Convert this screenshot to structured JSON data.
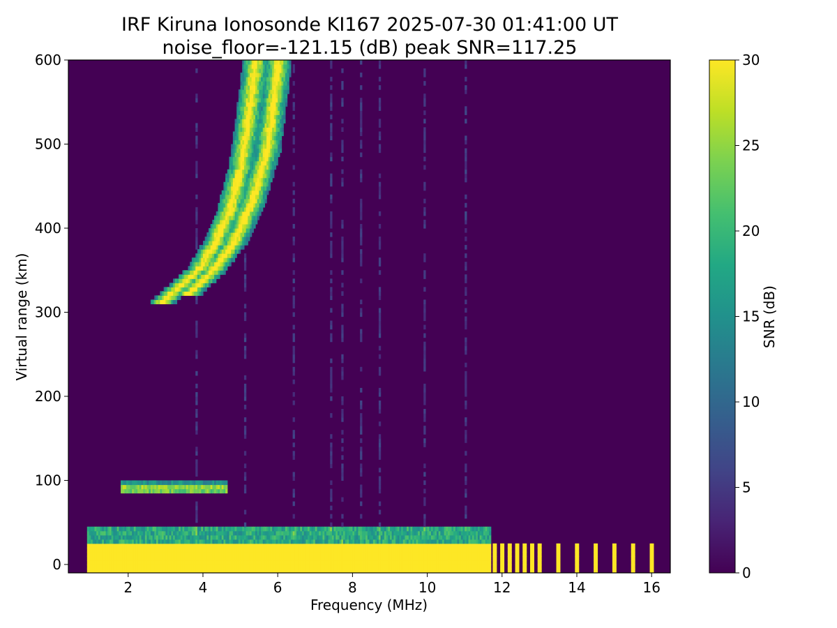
{
  "chart_data": {
    "type": "heatmap",
    "title_line1": "IRF Kiruna Ionosonde KI167 2025-07-30 01:41:00  UT",
    "title_line2": "noise_floor=-121.15 (dB) peak SNR=117.25",
    "xlabel": "Frequency (MHz)",
    "ylabel": "Virtual range (km)",
    "colorbar_label": "SNR (dB)",
    "xlim": [
      0.4,
      16.5
    ],
    "ylim": [
      -10,
      600
    ],
    "clim": [
      0,
      30
    ],
    "x_ticks": [
      2,
      4,
      6,
      8,
      10,
      12,
      14,
      16
    ],
    "y_ticks": [
      0,
      100,
      200,
      300,
      400,
      500,
      600
    ],
    "colorbar_ticks": [
      0,
      5,
      10,
      15,
      20,
      25,
      30
    ],
    "colormap": "viridis",
    "traces": [
      {
        "name_hint": "F-layer O-mode",
        "points": [
          [
            2.9,
            310
          ],
          [
            3.4,
            330
          ],
          [
            3.9,
            350
          ],
          [
            4.3,
            380
          ],
          [
            4.7,
            420
          ],
          [
            5.0,
            470
          ],
          [
            5.2,
            530
          ],
          [
            5.4,
            600
          ]
        ]
      },
      {
        "name_hint": "F-layer X-mode",
        "points": [
          [
            3.6,
            320
          ],
          [
            4.2,
            345
          ],
          [
            4.8,
            380
          ],
          [
            5.3,
            430
          ],
          [
            5.7,
            490
          ],
          [
            5.9,
            560
          ],
          [
            6.0,
            600
          ]
        ]
      },
      {
        "name_hint": "E-layer",
        "points": [
          [
            1.8,
            85
          ],
          [
            2.6,
            88
          ],
          [
            3.4,
            92
          ],
          [
            4.2,
            90
          ],
          [
            4.6,
            90
          ]
        ]
      }
    ],
    "ground_clutter_top_km": 25,
    "freq_data_start": 0.9,
    "freq_gap_start": 11.7,
    "freq_end": 16.4,
    "high_freq_bars": [
      11.8,
      12.0,
      12.2,
      12.4,
      12.6,
      12.8,
      13.0,
      13.5,
      14.0,
      14.5,
      15.0,
      15.5,
      16.0
    ]
  }
}
